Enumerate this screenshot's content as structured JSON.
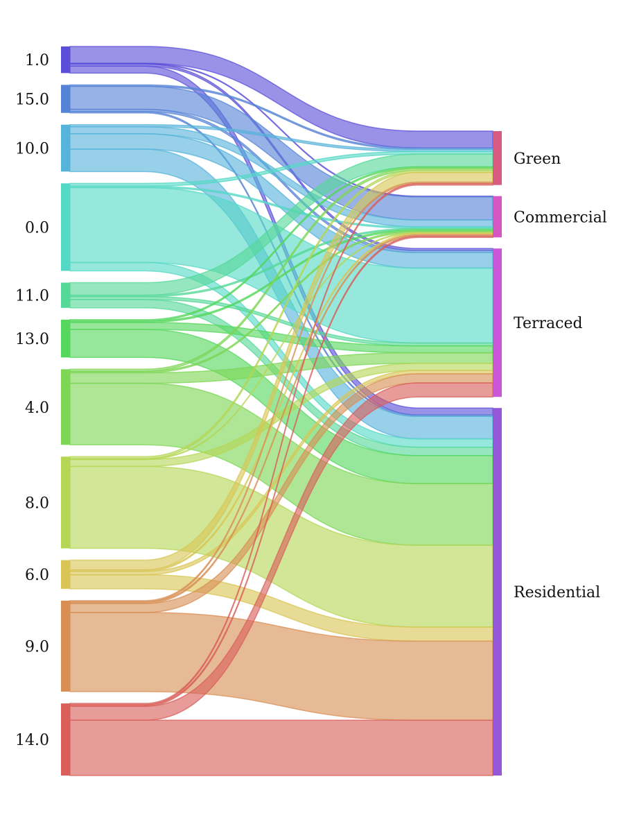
{
  "chart_data": {
    "type": "sankey",
    "title": "",
    "sources": [
      {
        "label": "1.0",
        "color": "#5b4fd9"
      },
      {
        "label": "15.0",
        "color": "#5683d6"
      },
      {
        "label": "10.0",
        "color": "#57b3da"
      },
      {
        "label": "0.0",
        "color": "#55d8c6"
      },
      {
        "label": "11.0",
        "color": "#55d898"
      },
      {
        "label": "13.0",
        "color": "#55d75e"
      },
      {
        "label": "4.0",
        "color": "#7ed655"
      },
      {
        "label": "8.0",
        "color": "#b5d655"
      },
      {
        "label": "6.0",
        "color": "#d8c555"
      },
      {
        "label": "9.0",
        "color": "#d88f55"
      },
      {
        "label": "14.0",
        "color": "#d85f5a"
      }
    ],
    "targets": [
      {
        "label": "Green",
        "color": "#d85a80"
      },
      {
        "label": "Commercial",
        "color": "#d657c1"
      },
      {
        "label": "Terraced",
        "color": "#c957d8"
      },
      {
        "label": "Residential",
        "color": "#9357d8"
      }
    ],
    "links": [
      {
        "source": "1.0",
        "target": "Green",
        "value": 24
      },
      {
        "source": "1.0",
        "target": "Commercial",
        "value": 1
      },
      {
        "source": "1.0",
        "target": "Terraced",
        "value": 3
      },
      {
        "source": "1.0",
        "target": "Residential",
        "value": 10
      },
      {
        "source": "15.0",
        "target": "Green",
        "value": 2
      },
      {
        "source": "15.0",
        "target": "Commercial",
        "value": 33
      },
      {
        "source": "15.0",
        "target": "Terraced",
        "value": 3
      },
      {
        "source": "15.0",
        "target": "Residential",
        "value": 2
      },
      {
        "source": "10.0",
        "target": "Green",
        "value": 3
      },
      {
        "source": "10.0",
        "target": "Commercial",
        "value": 10
      },
      {
        "source": "10.0",
        "target": "Terraced",
        "value": 22
      },
      {
        "source": "10.0",
        "target": "Residential",
        "value": 32
      },
      {
        "source": "0.0",
        "target": "Green",
        "value": 4
      },
      {
        "source": "0.0",
        "target": "Commercial",
        "value": 2
      },
      {
        "source": "0.0",
        "target": "Terraced",
        "value": 107
      },
      {
        "source": "0.0",
        "target": "Residential",
        "value": 12
      },
      {
        "source": "11.0",
        "target": "Green",
        "value": 18
      },
      {
        "source": "11.0",
        "target": "Commercial",
        "value": 2
      },
      {
        "source": "11.0",
        "target": "Terraced",
        "value": 4
      },
      {
        "source": "11.0",
        "target": "Residential",
        "value": 12
      },
      {
        "source": "13.0",
        "target": "Green",
        "value": 2
      },
      {
        "source": "13.0",
        "target": "Commercial",
        "value": 2
      },
      {
        "source": "13.0",
        "target": "Terraced",
        "value": 10
      },
      {
        "source": "13.0",
        "target": "Residential",
        "value": 40
      },
      {
        "source": "4.0",
        "target": "Green",
        "value": 3
      },
      {
        "source": "4.0",
        "target": "Commercial",
        "value": 2
      },
      {
        "source": "4.0",
        "target": "Terraced",
        "value": 15
      },
      {
        "source": "4.0",
        "target": "Residential",
        "value": 88
      },
      {
        "source": "8.0",
        "target": "Green",
        "value": 3
      },
      {
        "source": "8.0",
        "target": "Commercial",
        "value": 1
      },
      {
        "source": "8.0",
        "target": "Terraced",
        "value": 10
      },
      {
        "source": "8.0",
        "target": "Residential",
        "value": 117
      },
      {
        "source": "6.0",
        "target": "Green",
        "value": 14
      },
      {
        "source": "6.0",
        "target": "Commercial",
        "value": 2
      },
      {
        "source": "6.0",
        "target": "Terraced",
        "value": 5
      },
      {
        "source": "6.0",
        "target": "Residential",
        "value": 20
      },
      {
        "source": "9.0",
        "target": "Green",
        "value": 2
      },
      {
        "source": "9.0",
        "target": "Commercial",
        "value": 2
      },
      {
        "source": "9.0",
        "target": "Terraced",
        "value": 13
      },
      {
        "source": "9.0",
        "target": "Residential",
        "value": 113
      },
      {
        "source": "14.0",
        "target": "Green",
        "value": 2
      },
      {
        "source": "14.0",
        "target": "Commercial",
        "value": 2
      },
      {
        "source": "14.0",
        "target": "Terraced",
        "value": 20
      },
      {
        "source": "14.0",
        "target": "Residential",
        "value": 79
      }
    ]
  }
}
